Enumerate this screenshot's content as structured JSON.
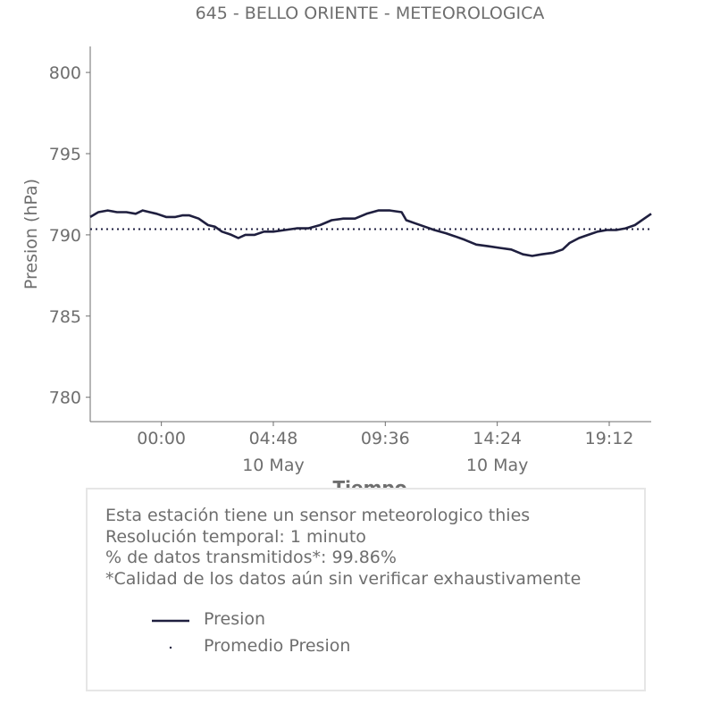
{
  "chart_data": {
    "type": "line",
    "title": "645 - BELLO ORIENTE - METEOROLOGICA",
    "xlabel": "Tiempo",
    "ylabel": "Presion (hPa)",
    "ylim": [
      778.5,
      801.6
    ],
    "yticks": [
      780,
      785,
      790,
      795,
      800
    ],
    "xticks": [
      {
        "label": "00:00",
        "sublabel": ""
      },
      {
        "label": "04:48",
        "sublabel": "10 May"
      },
      {
        "label": "09:36",
        "sublabel": ""
      },
      {
        "label": "14:24",
        "sublabel": "10 May"
      },
      {
        "label": "19:12",
        "sublabel": ""
      }
    ],
    "xtick_hours": [
      0,
      4.8,
      9.6,
      14.4,
      19.2
    ],
    "xlim_hours": [
      -3.05,
      21.0
    ],
    "grid": false,
    "series": [
      {
        "name": "Presion",
        "color": "#1f1f3f",
        "style": "solid",
        "x_hours": [
          -3.05,
          -2.7,
          -2.3,
          -1.9,
          -1.5,
          -1.1,
          -0.8,
          -0.5,
          -0.2,
          0.2,
          0.6,
          0.9,
          1.2,
          1.6,
          2.0,
          2.3,
          2.6,
          3.0,
          3.3,
          3.6,
          4.0,
          4.4,
          4.8,
          5.3,
          5.8,
          6.3,
          6.8,
          7.3,
          7.8,
          8.3,
          8.8,
          9.3,
          9.8,
          10.3,
          10.5,
          10.9,
          11.3,
          11.7,
          12.2,
          12.6,
          13.0,
          13.5,
          14.0,
          14.5,
          15.0,
          15.5,
          15.9,
          16.3,
          16.8,
          17.2,
          17.5,
          17.9,
          18.3,
          18.7,
          19.1,
          19.5,
          19.9,
          20.3,
          20.7,
          21.0
        ],
        "values": [
          791.1,
          791.4,
          791.5,
          791.4,
          791.4,
          791.3,
          791.5,
          791.4,
          791.3,
          791.1,
          791.1,
          791.2,
          791.2,
          791.0,
          790.6,
          790.5,
          790.2,
          790.0,
          789.8,
          790.0,
          790.0,
          790.2,
          790.2,
          790.3,
          790.4,
          790.4,
          790.6,
          790.9,
          791.0,
          791.0,
          791.3,
          791.5,
          791.5,
          791.4,
          790.9,
          790.7,
          790.5,
          790.3,
          790.1,
          789.9,
          789.7,
          789.4,
          789.3,
          789.2,
          789.1,
          788.8,
          788.7,
          788.8,
          788.9,
          789.1,
          789.5,
          789.8,
          790.0,
          790.2,
          790.3,
          790.3,
          790.4,
          790.6,
          791.0,
          791.3
        ]
      },
      {
        "name": "Promedio Presion",
        "color": "#1f1f3f",
        "style": "dotted",
        "value": 790.35
      }
    ]
  },
  "info": {
    "lines": [
      "Esta estación tiene un sensor meteorologico thies",
      "Resolución temporal: 1 minuto",
      "% de datos transmitidos*: 99.86%",
      "*Calidad de los datos aún sin verificar exhaustivamente"
    ],
    "legend": [
      "Presion",
      "Promedio Presion"
    ]
  }
}
